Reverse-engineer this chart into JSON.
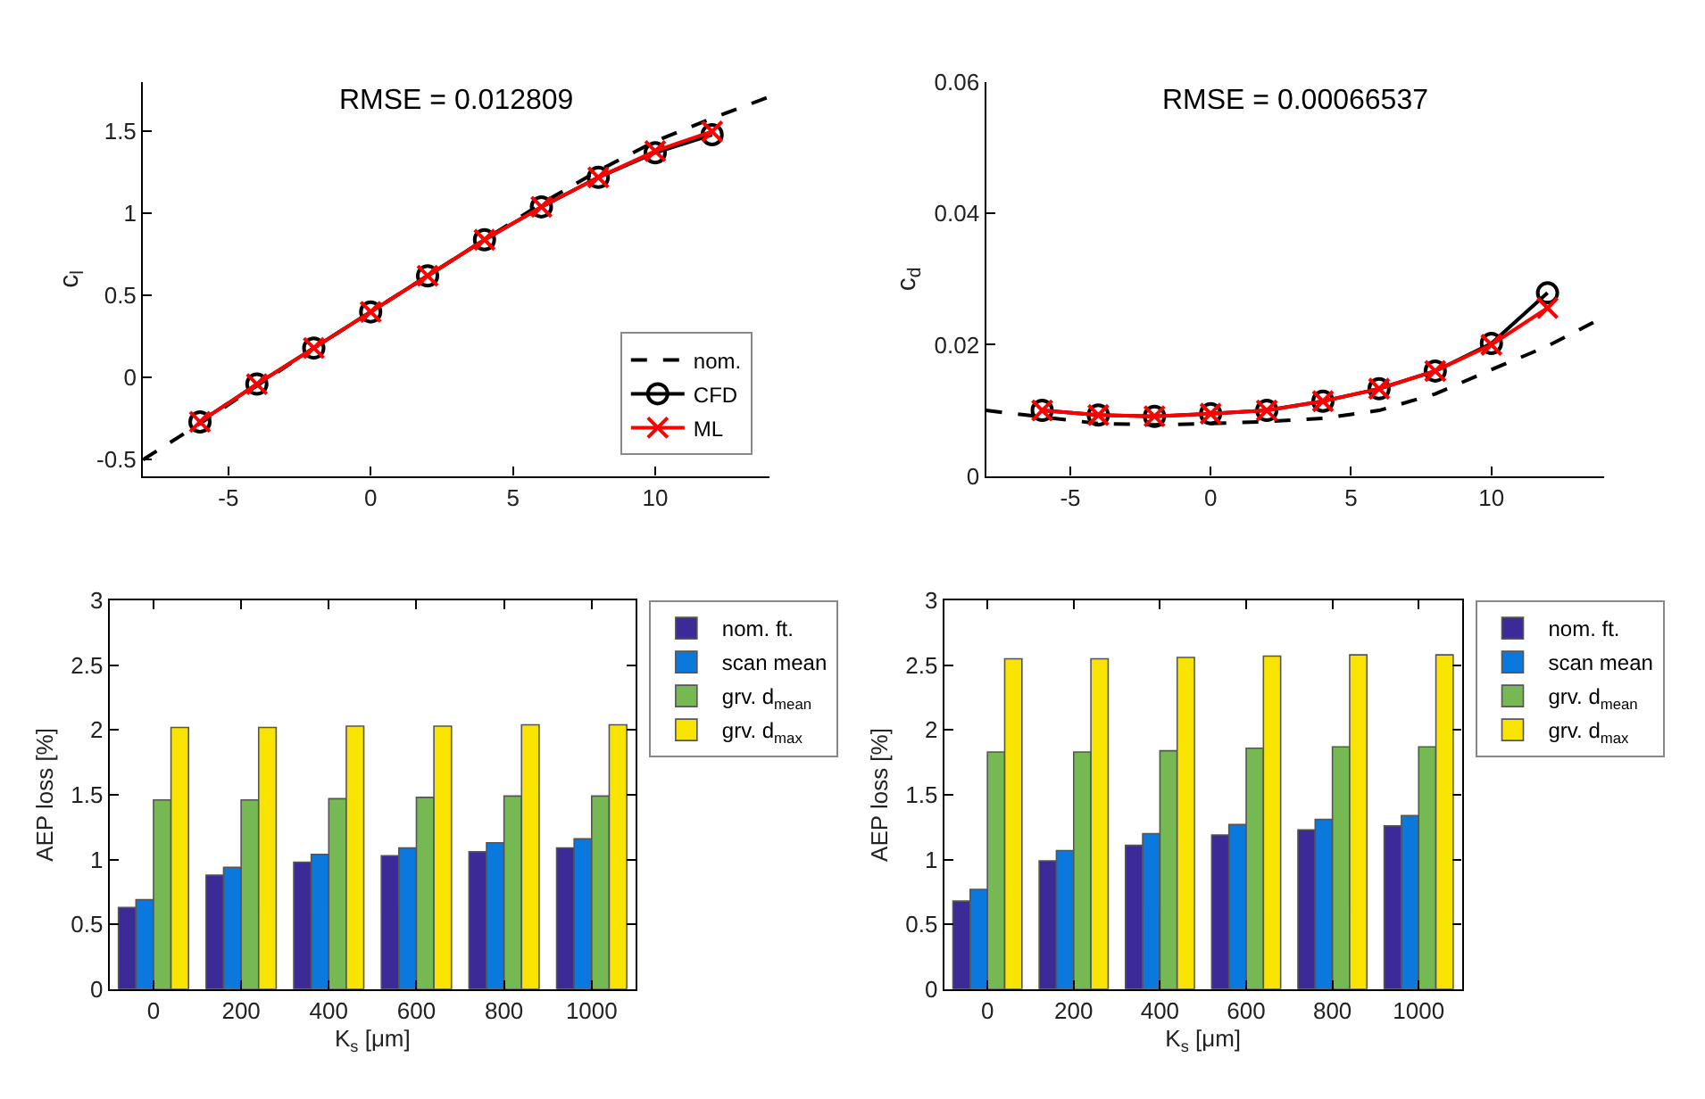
{
  "chart_data": [
    {
      "type": "line",
      "title": "RMSE = 0.012809",
      "ylabel": "c$_{l}$",
      "xlim": [
        -8,
        14
      ],
      "ylim": [
        -0.6,
        1.8
      ],
      "xticks": [
        -5,
        0,
        5,
        10
      ],
      "yticks": [
        -0.5,
        0,
        0.5,
        1,
        1.5
      ],
      "legend": "bottom right",
      "x": [
        -6,
        -4,
        -2,
        0,
        2,
        4,
        6,
        8,
        10,
        12
      ],
      "series": [
        {
          "name": "nom.",
          "color": "#000000",
          "line_style": "dashed",
          "marker": "none",
          "x": [
            -8,
            -6,
            -4,
            -2,
            0,
            2,
            4,
            6,
            8,
            10,
            12,
            14
          ],
          "values": [
            -0.5,
            -0.28,
            -0.05,
            0.18,
            0.4,
            0.62,
            0.84,
            1.06,
            1.26,
            1.44,
            1.58,
            1.71
          ]
        },
        {
          "name": "CFD",
          "color": "#000000",
          "line_style": "solid",
          "marker": "circle",
          "values": [
            -0.27,
            -0.04,
            0.18,
            0.4,
            0.62,
            0.84,
            1.04,
            1.22,
            1.37,
            1.48
          ]
        },
        {
          "name": "ML",
          "color": "#ff0000",
          "line_style": "solid",
          "marker": "cross",
          "values": [
            -0.27,
            -0.04,
            0.18,
            0.4,
            0.62,
            0.84,
            1.04,
            1.22,
            1.38,
            1.5
          ]
        }
      ]
    },
    {
      "type": "line",
      "title": "RMSE = 0.00066537",
      "ylabel": "c$_{d}$",
      "xlim": [
        -8,
        14
      ],
      "ylim": [
        0,
        0.06
      ],
      "xticks": [
        -5,
        0,
        5,
        10
      ],
      "yticks": [
        0,
        0.02,
        0.04,
        0.06
      ],
      "x": [
        -6,
        -4,
        -2,
        0,
        2,
        4,
        6,
        8,
        10,
        12
      ],
      "series": [
        {
          "color": "#000000",
          "line_style": "dashed",
          "marker": "none",
          "x": [
            -8,
            -6,
            -4,
            -2,
            0,
            2,
            4,
            6,
            8,
            10,
            12,
            14
          ],
          "values": [
            0.01,
            0.009,
            0.008,
            0.0078,
            0.008,
            0.0083,
            0.0088,
            0.01,
            0.0125,
            0.0162,
            0.0198,
            0.0242
          ]
        },
        {
          "color": "#000000",
          "line_style": "solid",
          "marker": "circle",
          "values": [
            0.01,
            0.0093,
            0.0091,
            0.0095,
            0.01,
            0.0114,
            0.0133,
            0.016,
            0.0202,
            0.0279
          ]
        },
        {
          "color": "#ff0000",
          "line_style": "solid",
          "marker": "cross",
          "values": [
            0.01,
            0.0093,
            0.0091,
            0.0095,
            0.01,
            0.0114,
            0.0133,
            0.016,
            0.02,
            0.0256
          ]
        }
      ]
    },
    {
      "type": "bar",
      "xlabel": "K$_{s}$ [μm]",
      "ylabel": "AEP loss [%]",
      "ylim": [
        0,
        3
      ],
      "yticks": [
        0,
        0.5,
        1,
        1.5,
        2,
        2.5,
        3
      ],
      "legend": "right",
      "categories": [
        "0",
        "200",
        "400",
        "600",
        "800",
        "1000"
      ],
      "series": [
        {
          "name": "nom. ft.",
          "color": "#3b2a98",
          "values": [
            0.63,
            0.88,
            0.98,
            1.03,
            1.06,
            1.09
          ]
        },
        {
          "name": "scan mean",
          "color": "#0a78dc",
          "values": [
            0.69,
            0.94,
            1.04,
            1.09,
            1.13,
            1.16
          ]
        },
        {
          "name": "grv. d$_{mean}$",
          "color": "#76b852",
          "values": [
            1.46,
            1.46,
            1.47,
            1.48,
            1.49,
            1.49
          ]
        },
        {
          "name": "grv. d$_{max}$",
          "color": "#f9e400",
          "values": [
            2.02,
            2.02,
            2.03,
            2.03,
            2.04,
            2.04
          ]
        }
      ]
    },
    {
      "type": "bar",
      "xlabel": "K$_{s}$ [μm]",
      "ylabel": "AEP loss [%]",
      "ylim": [
        0,
        3
      ],
      "yticks": [
        0,
        0.5,
        1,
        1.5,
        2,
        2.5,
        3
      ],
      "legend": "right",
      "categories": [
        "0",
        "200",
        "400",
        "600",
        "800",
        "1000"
      ],
      "series": [
        {
          "name": "nom. ft.",
          "color": "#3b2a98",
          "values": [
            0.68,
            0.99,
            1.11,
            1.19,
            1.23,
            1.26
          ]
        },
        {
          "name": "scan mean",
          "color": "#0a78dc",
          "values": [
            0.77,
            1.07,
            1.2,
            1.27,
            1.31,
            1.34
          ]
        },
        {
          "name": "grv. d$_{mean}$",
          "color": "#76b852",
          "values": [
            1.83,
            1.83,
            1.84,
            1.86,
            1.87,
            1.87
          ]
        },
        {
          "name": "grv. d$_{max}$",
          "color": "#f9e400",
          "values": [
            2.55,
            2.55,
            2.56,
            2.57,
            2.58,
            2.58
          ]
        }
      ]
    }
  ]
}
